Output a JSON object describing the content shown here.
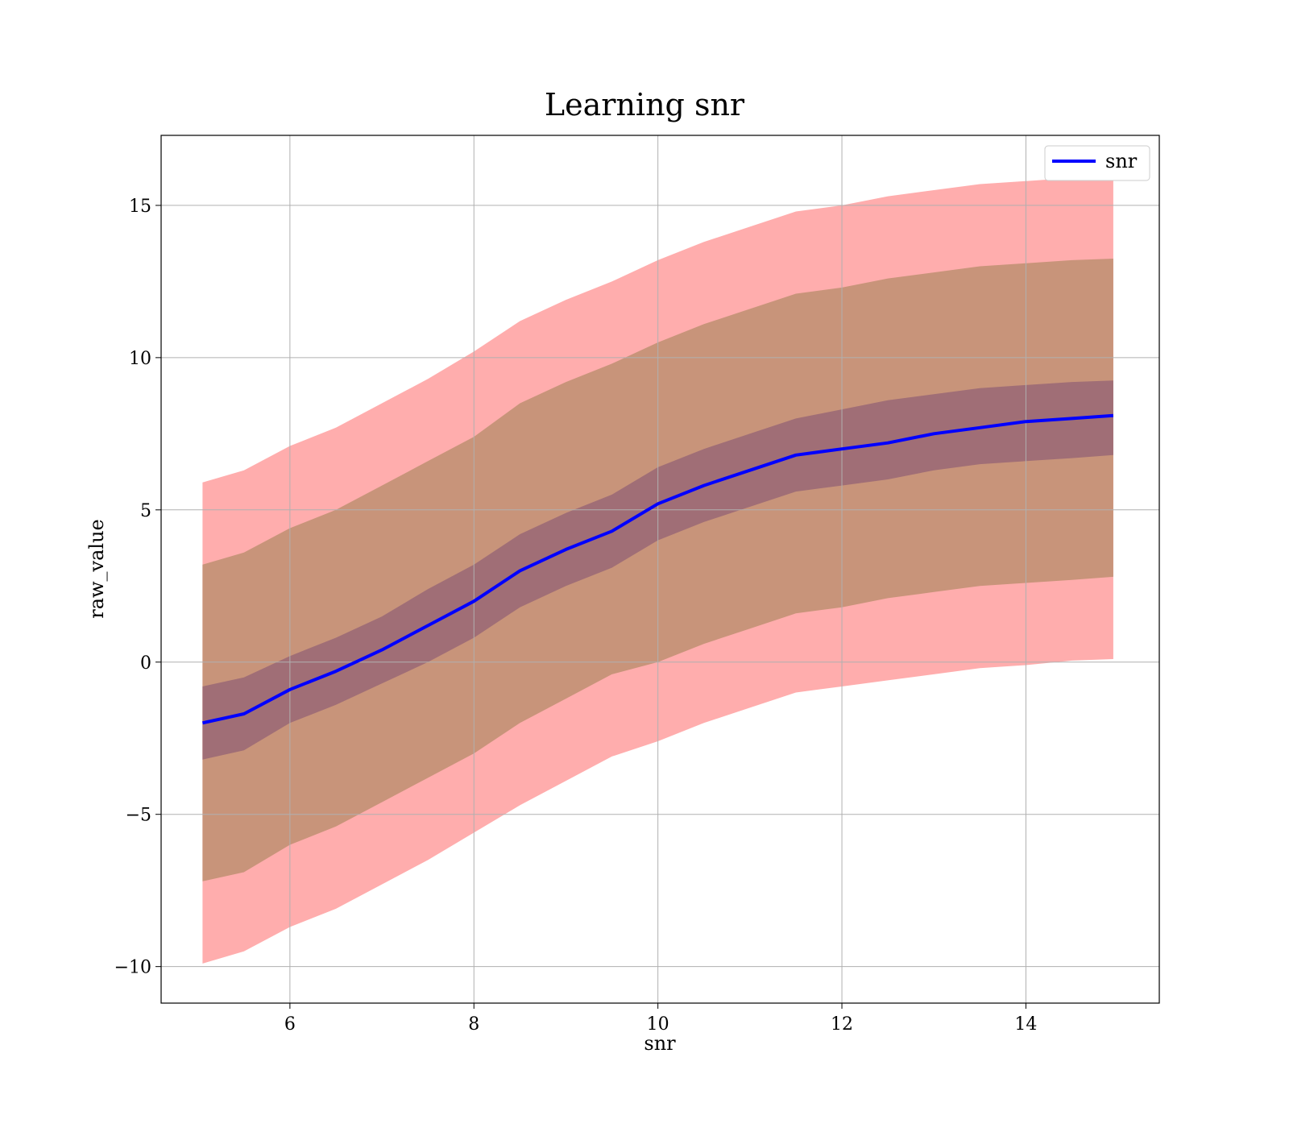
{
  "chart_data": {
    "type": "line",
    "title": "Learning snr",
    "xlabel": "snr",
    "ylabel": "raw_value",
    "xlim": [
      4.6,
      15.45
    ],
    "ylim": [
      -11.2,
      17.3
    ],
    "xticks": [
      6,
      8,
      10,
      12,
      14
    ],
    "yticks": [
      -10,
      -5,
      0,
      5,
      10,
      15
    ],
    "ytick_labels": [
      "−10",
      "−5",
      "0",
      "5",
      "10",
      "15"
    ],
    "grid": true,
    "legend": {
      "position": "top-right",
      "entries": [
        "snr"
      ]
    },
    "colors": {
      "line": "#0000ff",
      "band_outer": "#ffadad",
      "band_middle": "#c8947a",
      "band_inner": "#a06e76"
    },
    "x": [
      5.05,
      5.5,
      6.0,
      6.5,
      7.0,
      7.5,
      8.0,
      8.5,
      9.0,
      9.5,
      10.0,
      10.5,
      11.0,
      11.5,
      12.0,
      12.5,
      13.0,
      13.5,
      14.0,
      14.5,
      14.95
    ],
    "series": [
      {
        "name": "snr",
        "values": [
          -2.0,
          -1.7,
          -0.9,
          -0.3,
          0.4,
          1.2,
          2.0,
          3.0,
          3.7,
          4.3,
          5.2,
          5.8,
          6.3,
          6.8,
          7.0,
          7.2,
          7.5,
          7.7,
          7.9,
          8.0,
          8.1
        ]
      }
    ],
    "bands": {
      "outer": {
        "upper": [
          5.9,
          6.3,
          7.1,
          7.7,
          8.5,
          9.3,
          10.2,
          11.2,
          11.9,
          12.5,
          13.2,
          13.8,
          14.3,
          14.8,
          15.0,
          15.3,
          15.5,
          15.7,
          15.8,
          15.9,
          15.95
        ],
        "lower": [
          -9.9,
          -9.5,
          -8.7,
          -8.1,
          -7.3,
          -6.5,
          -5.6,
          -4.7,
          -3.9,
          -3.1,
          -2.6,
          -2.0,
          -1.5,
          -1.0,
          -0.8,
          -0.6,
          -0.4,
          -0.2,
          -0.1,
          0.05,
          0.1
        ]
      },
      "middle": {
        "upper": [
          3.2,
          3.6,
          4.4,
          5.0,
          5.8,
          6.6,
          7.4,
          8.5,
          9.2,
          9.8,
          10.5,
          11.1,
          11.6,
          12.1,
          12.3,
          12.6,
          12.8,
          13.0,
          13.1,
          13.2,
          13.25
        ],
        "lower": [
          -7.2,
          -6.9,
          -6.0,
          -5.4,
          -4.6,
          -3.8,
          -3.0,
          -2.0,
          -1.2,
          -0.4,
          0.0,
          0.6,
          1.1,
          1.6,
          1.8,
          2.1,
          2.3,
          2.5,
          2.6,
          2.7,
          2.8
        ]
      },
      "inner": {
        "upper": [
          -0.8,
          -0.5,
          0.2,
          0.8,
          1.5,
          2.4,
          3.2,
          4.2,
          4.9,
          5.5,
          6.4,
          7.0,
          7.5,
          8.0,
          8.3,
          8.6,
          8.8,
          9.0,
          9.1,
          9.2,
          9.25
        ],
        "lower": [
          -3.2,
          -2.9,
          -2.0,
          -1.4,
          -0.7,
          0.0,
          0.8,
          1.8,
          2.5,
          3.1,
          4.0,
          4.6,
          5.1,
          5.6,
          5.8,
          6.0,
          6.3,
          6.5,
          6.6,
          6.7,
          6.8
        ]
      }
    }
  }
}
